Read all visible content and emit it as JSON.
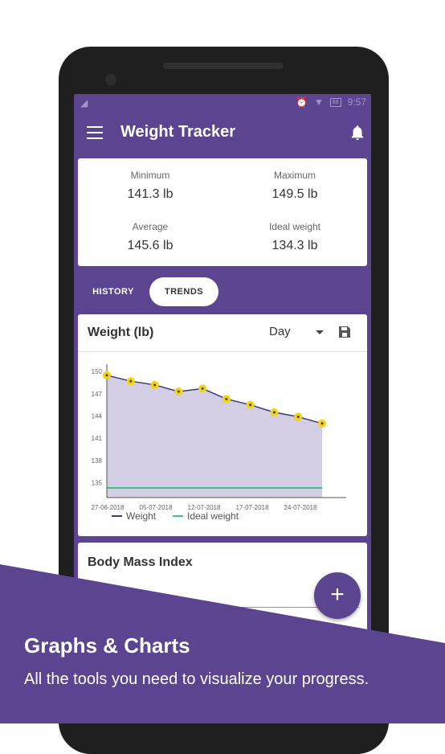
{
  "status_bar": {
    "time": "9:57",
    "battery": "88"
  },
  "app": {
    "title": "Weight Tracker"
  },
  "stats": {
    "minimum": {
      "label": "Minimum",
      "value": "141.3 lb"
    },
    "maximum": {
      "label": "Maximum",
      "value": "149.5 lb"
    },
    "average": {
      "label": "Average",
      "value": "145.6 lb"
    },
    "ideal": {
      "label": "Ideal weight",
      "value": "134.3 lb"
    }
  },
  "tabs": [
    {
      "label": "HISTORY",
      "active": false
    },
    {
      "label": "TRENDS",
      "active": true
    }
  ],
  "weight_card": {
    "title": "Weight (lb)",
    "period": "Day"
  },
  "chart_data": {
    "type": "area",
    "y_ticks": [
      135,
      138,
      141,
      144,
      147,
      150
    ],
    "ylim": [
      133,
      151
    ],
    "x_tick_labels": [
      "27-06-2018",
      "05-07-2018",
      "12-07-2018",
      "17-07-2018",
      "24-07-2018"
    ],
    "series": [
      {
        "name": "Weight",
        "values": [
          149.5,
          148.7,
          148.2,
          147.3,
          147.7,
          146.3,
          145.5,
          144.5,
          143.9,
          143.0
        ]
      },
      {
        "name": "Ideal weight",
        "values": [
          134.3,
          134.3,
          134.3,
          134.3,
          134.3,
          134.3,
          134.3,
          134.3,
          134.3,
          134.3
        ]
      }
    ],
    "legend": [
      "Weight",
      "Ideal weight"
    ],
    "legend_position": "bottom",
    "grid": false,
    "colors": {
      "line": "#3a3a7a",
      "fill": "#d3cee3",
      "point": "#f2d40f",
      "ideal": "#3fbf8f"
    }
  },
  "bmi_card": {
    "title": "Body Mass Index"
  },
  "fab": {
    "label": "+"
  },
  "promo": {
    "title": "Graphs & Charts",
    "subtitle": "All the tools you need to visualize your progress."
  },
  "colors": {
    "primary": "#5c4590",
    "accent": "#f2d40f"
  }
}
